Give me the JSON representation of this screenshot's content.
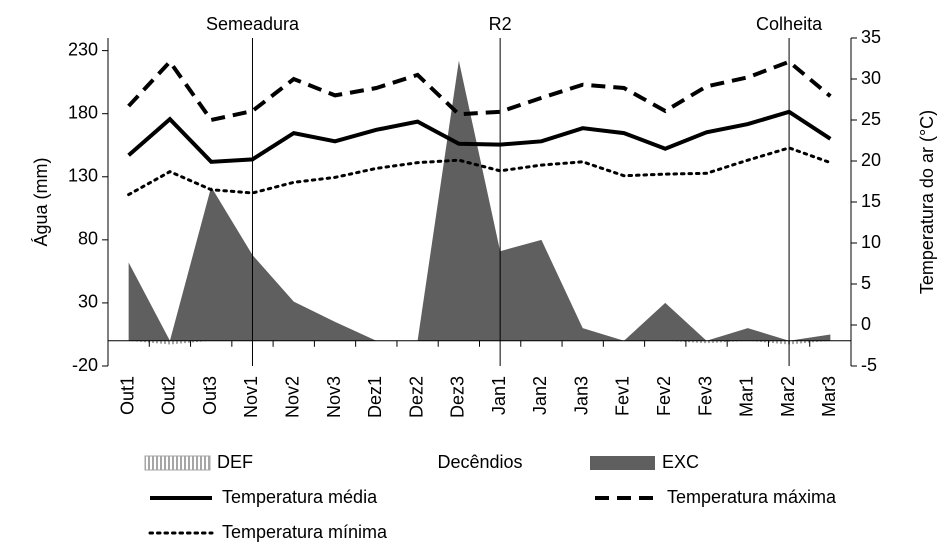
{
  "chart_data": {
    "type": "line",
    "x_label": "Decêndios",
    "y_label": "Água (mm)",
    "y2_label": "Temperatura do ar (°C)",
    "categories": [
      "Out1",
      "Out2",
      "Out3",
      "Nov1",
      "Nov2",
      "Nov3",
      "Dez1",
      "Dez2",
      "Dez3",
      "Jan1",
      "Jan2",
      "Jan3",
      "Fev1",
      "Fev2",
      "Fev3",
      "Mar1",
      "Mar2",
      "Mar3"
    ],
    "series": [
      {
        "name": "DEF",
        "type": "area",
        "style": "hatched",
        "color": "#a6a6a6",
        "axis": "y",
        "values": [
          0,
          -3,
          0,
          0,
          0,
          0,
          0,
          0,
          0,
          0,
          0,
          0,
          0,
          0,
          -2,
          0,
          -3,
          0
        ]
      },
      {
        "name": "EXC",
        "type": "area",
        "style": "solid",
        "color": "#5f5f5f",
        "axis": "y",
        "values": [
          62,
          0,
          122,
          68,
          31,
          15,
          0,
          0,
          222,
          71,
          80,
          10,
          0,
          30,
          0,
          10,
          0,
          5
        ]
      },
      {
        "name": "Temperatura média",
        "type": "line",
        "style": "solid",
        "color": "#000000",
        "axis": "y2",
        "values": [
          20.7,
          25.1,
          19.9,
          20.2,
          23.4,
          22.4,
          23.8,
          24.8,
          22.1,
          22.0,
          22.4,
          24.0,
          23.4,
          21.5,
          23.5,
          24.5,
          26.0,
          22.7
        ]
      },
      {
        "name": "Temperatura máxima",
        "type": "line",
        "style": "dashed",
        "color": "#000000",
        "axis": "y2",
        "values": [
          26.7,
          32.1,
          25.0,
          26.1,
          30.0,
          28.0,
          28.9,
          30.5,
          25.7,
          26.0,
          27.7,
          29.3,
          28.9,
          26.1,
          29.1,
          30.2,
          32.1,
          27.9
        ]
      },
      {
        "name": "Temperatura mínima",
        "type": "line",
        "style": "dotted",
        "color": "#000000",
        "axis": "y2",
        "values": [
          15.9,
          18.7,
          16.5,
          16.1,
          17.4,
          18.0,
          19.1,
          19.8,
          20.1,
          18.8,
          19.5,
          19.9,
          18.2,
          18.4,
          18.5,
          20.1,
          21.6,
          19.8
        ]
      }
    ],
    "annotations": [
      {
        "label": "Semeadura",
        "category": "Nov1"
      },
      {
        "label": "R2",
        "category": "Jan1"
      },
      {
        "label": "Colheita",
        "category": "Mar2"
      }
    ],
    "ylim": [
      -20,
      240
    ],
    "yticks": [
      -20,
      30,
      80,
      130,
      180,
      230
    ],
    "y2lim": [
      -5,
      35
    ],
    "y2ticks": [
      -5,
      0,
      5,
      10,
      15,
      20,
      25,
      30,
      35
    ]
  }
}
